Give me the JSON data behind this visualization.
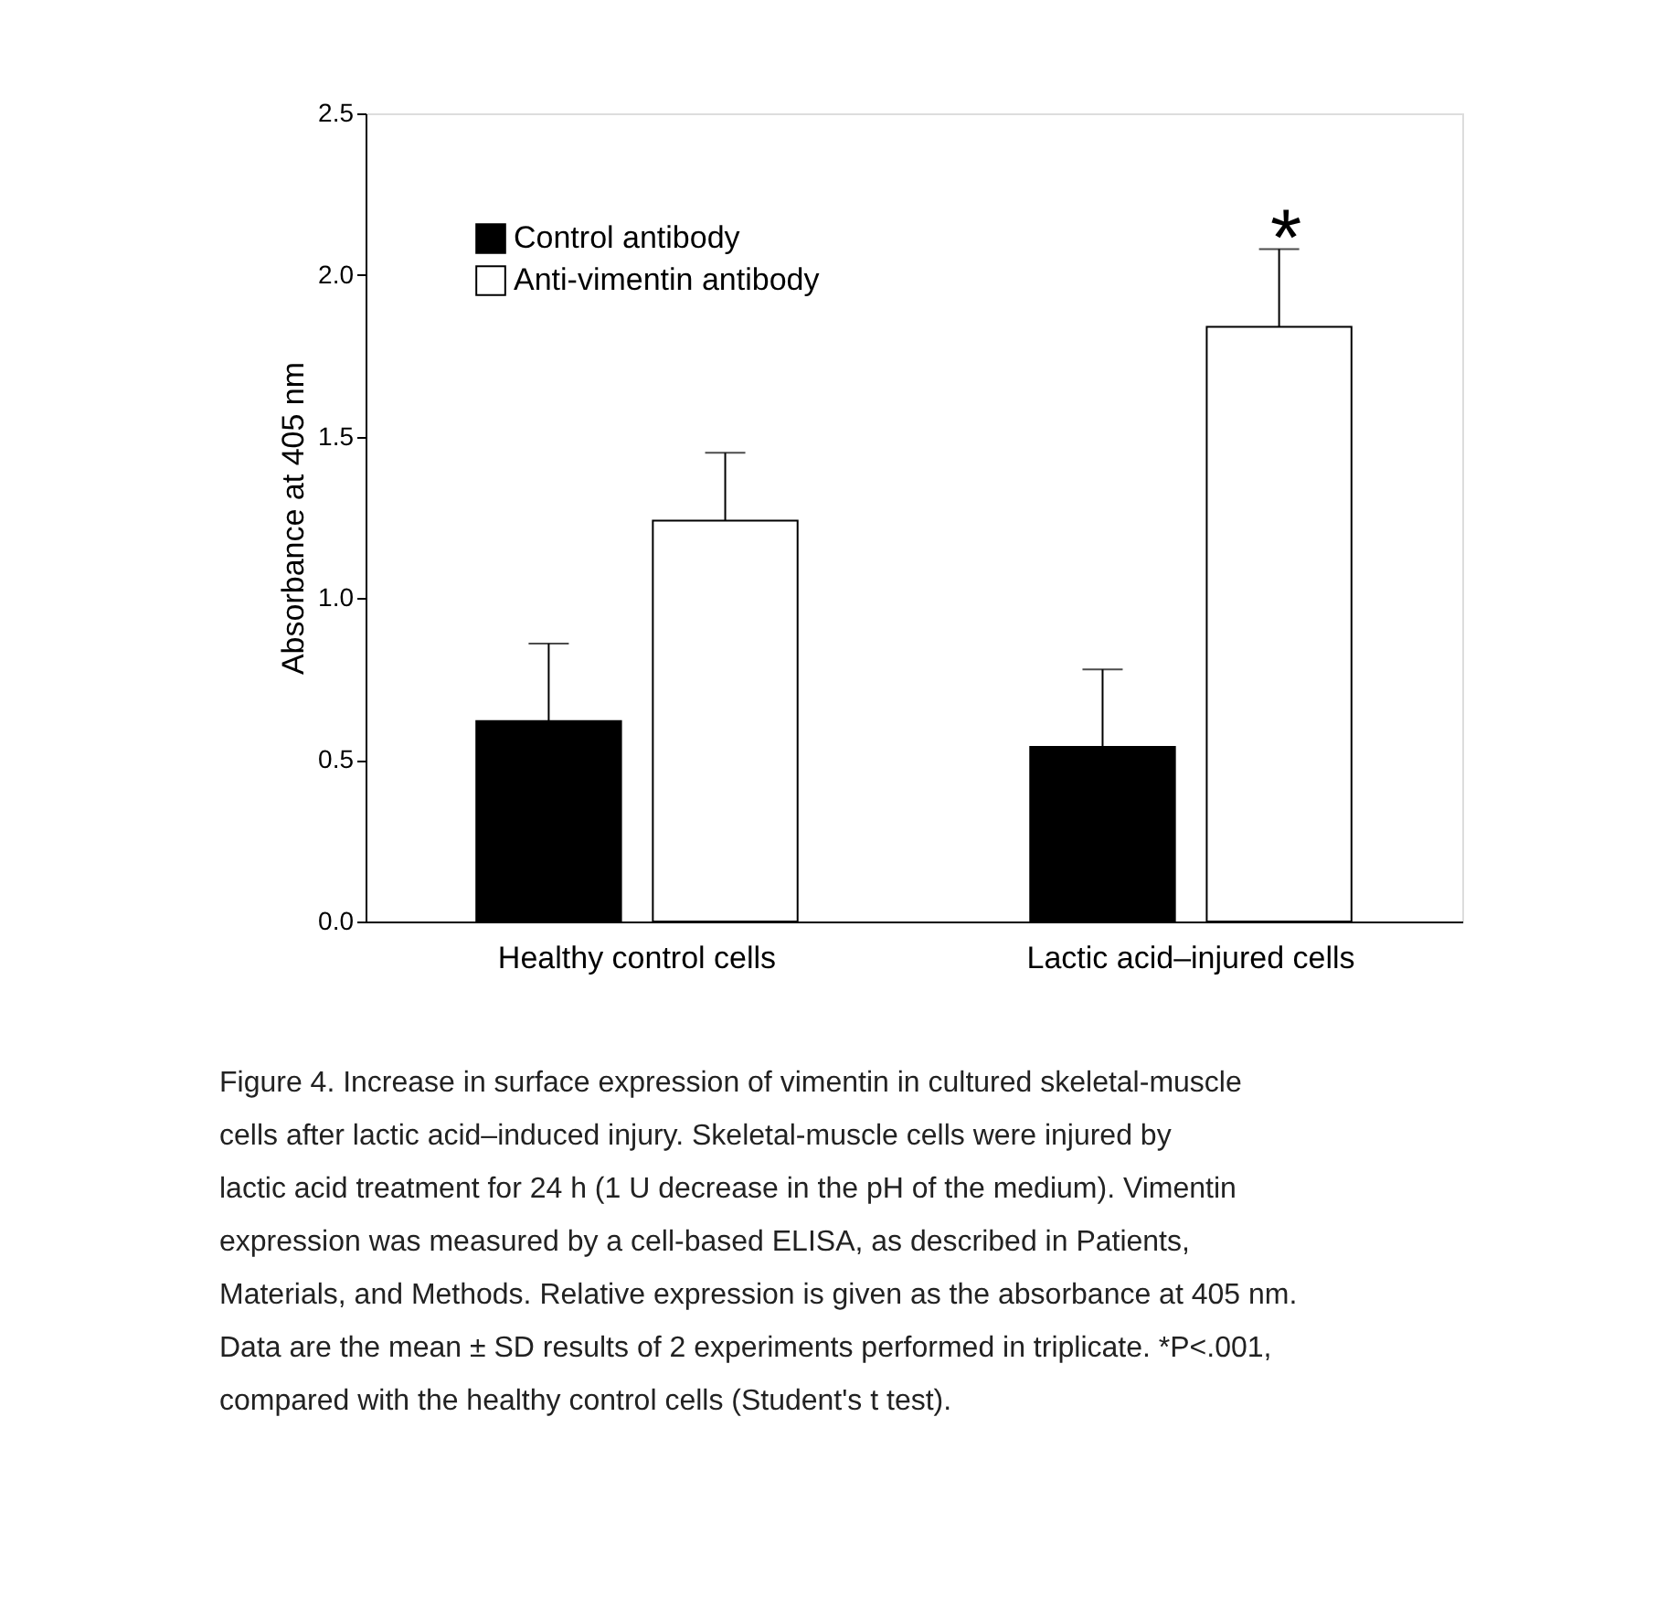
{
  "chart_data": {
    "type": "bar",
    "ylabel": "Absorbance at 405 nm",
    "categories": [
      "Healthy control cells",
      "Lactic acid–injured cells"
    ],
    "series": [
      {
        "name": "Control antibody",
        "color": "#000000",
        "values": [
          0.62,
          0.54
        ],
        "errors": [
          [
            0.62,
            0.86
          ],
          [
            0.54,
            0.78
          ]
        ]
      },
      {
        "name": "Anti-vimentin antibody",
        "color": "#ffffff",
        "values": [
          1.24,
          1.84
        ],
        "errors": [
          [
            1.24,
            1.45
          ],
          [
            1.84,
            2.08
          ]
        ]
      }
    ],
    "ylim": [
      0,
      2.5
    ],
    "yticks": [
      {
        "value": 0,
        "label": "0.0"
      },
      0.5,
      {
        "value": 1,
        "label": "1.0"
      },
      1.5,
      {
        "value": 2,
        "label": "2.0"
      },
      2.5
    ],
    "grid": false,
    "legend": "top left",
    "annotations": [
      "*",
      "Figure 4. Increase in surface expression of vimentin in cultured skeletal-muscle cells after lactic acid–induced injury. Skeletal-muscle cells were injured by lactic acid treatment for 24 h (1 U decrease in the pH of the medium). Vimentin expression was measured by a cell-based ELISA, as described in Patients, Materials, and Methods. Relative expression is given as the absorbance at 405 nm. Data are the mean ± SD results of 2 experiments performed in triplicate. *P<.001, compared with the healthy control cells (Student's t test)."
    ]
  }
}
